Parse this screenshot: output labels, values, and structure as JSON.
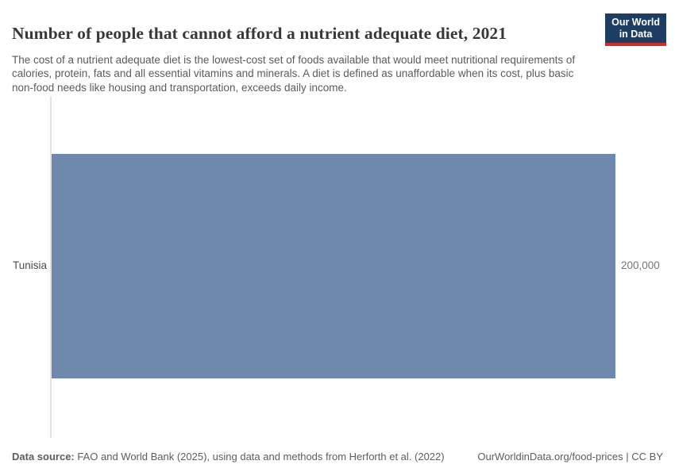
{
  "header": {
    "title": "Number of people that cannot afford a nutrient adequate diet, 2021",
    "subtitle": "The cost of a nutrient adequate diet is the lowest-cost set of foods available that would meet nutritional requirements of calories, protein, fats and all essential vitamins and minerals. A diet is defined as unaffordable when its cost, plus basic non-food needs like housing and transportation, exceeds daily income.",
    "logo": {
      "line1": "Our World",
      "line2": "in Data",
      "bg_color": "#1d3d63",
      "accent_color": "#cc302d",
      "text_color": "#ffffff"
    }
  },
  "chart_data": {
    "type": "bar",
    "orientation": "horizontal",
    "title": "Number of people that cannot afford a nutrient adequate diet, 2021",
    "categories": [
      "Tunisia"
    ],
    "values": [
      200000
    ],
    "value_labels": [
      "200,000"
    ],
    "xlim": [
      0,
      200000
    ],
    "xlabel": "",
    "ylabel": "",
    "grid": false,
    "legend": "none",
    "bar_color": "#6f88ad",
    "axis_line_color": "#e2e2e2"
  },
  "footer": {
    "source_label": "Data source:",
    "source_text": " FAO and World Bank (2025), using data and methods from Herforth et al. (2022)",
    "link_text": "OurWorldinData.org/food-prices | CC BY"
  }
}
